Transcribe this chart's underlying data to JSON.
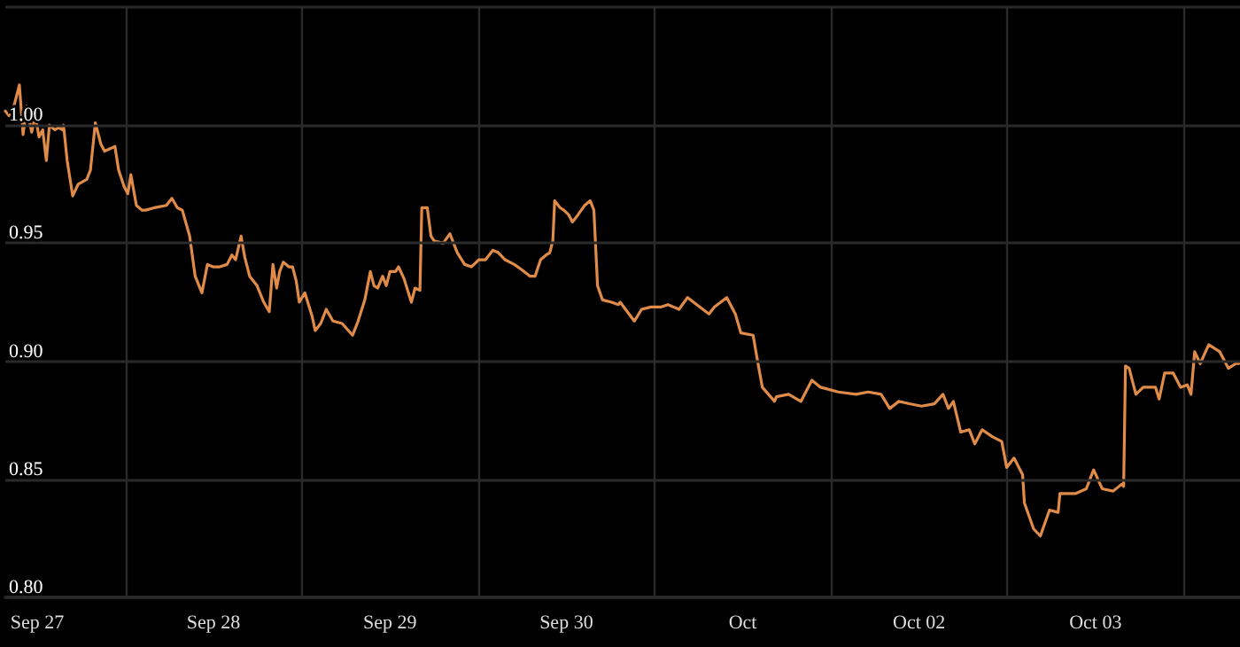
{
  "chart_data": {
    "type": "line",
    "x": [
      "--09-26T19:40",
      "--09-26T20:10",
      "--09-26T20:50",
      "--09-26T21:35",
      "--09-26T22:05",
      "--09-26T22:35",
      "--09-26T23:15",
      "--09-26T23:45",
      "--09-27T00:15",
      "--09-27T00:45",
      "--09-27T01:15",
      "--09-27T01:40",
      "--09-27T02:25",
      "--09-27T02:55",
      "--09-27T03:25",
      "--09-27T03:35",
      "--09-27T04:05",
      "--09-27T04:50",
      "--09-27T05:35",
      "--09-27T06:45",
      "--09-27T07:15",
      "--09-27T07:55",
      "--09-27T08:40",
      "--09-27T09:10",
      "--09-27T09:55",
      "--09-27T10:35",
      "--09-27T11:05",
      "--09-27T11:50",
      "--09-27T12:20",
      "--09-27T12:45",
      "--09-27T13:30",
      "--09-27T14:15",
      "--09-27T14:45",
      "--09-27T15:55",
      "--09-27T17:35",
      "--09-27T18:20",
      "--09-27T19:05",
      "--09-27T19:45",
      "--09-27T20:45",
      "--09-27T21:30",
      "--09-27T22:25",
      "--09-27T23:10",
      "--09-27T23:55",
      "--09-28T00:50",
      "--09-28T01:50",
      "--09-28T02:30",
      "--09-28T03:00",
      "--09-28T03:45",
      "--09-28T04:15",
      "--09-28T04:55",
      "--09-28T05:55",
      "--09-28T06:50",
      "--09-28T07:35",
      "--09-28T08:05",
      "--09-28T08:35",
      "--09-28T09:00",
      "--09-28T09:30",
      "--09-28T10:15",
      "--09-28T10:45",
      "--09-28T11:15",
      "--09-28T11:40",
      "--09-28T12:25",
      "--09-28T13:25",
      "--09-28T13:50",
      "--09-28T14:35",
      "--09-28T15:20",
      "--09-28T16:15",
      "--09-28T17:30",
      "--09-28T18:55",
      "--09-28T19:40",
      "--09-28T20:35",
      "--09-28T21:20",
      "--09-28T21:50",
      "--09-28T22:20",
      "--09-28T23:00",
      "--09-28T23:30",
      "--09-29T00:00",
      "--09-29T00:45",
      "--09-29T01:10",
      "--09-29T01:55",
      "--09-29T02:55",
      "--09-29T03:25",
      "--09-29T04:05",
      "--09-29T04:20",
      "--09-29T05:05",
      "--09-29T05:35",
      "--09-29T06:00",
      "--09-29T07:15",
      "--09-29T08:10",
      "--09-29T09:10",
      "--09-29T10:10",
      "--09-29T11:05",
      "--09-29T12:05",
      "--09-29T13:00",
      "--09-29T14:00",
      "--09-29T14:45",
      "--09-29T15:40",
      "--09-29T16:55",
      "--09-29T17:50",
      "--09-29T19:05",
      "--09-29T19:45",
      "--09-29T20:30",
      "--09-29T21:15",
      "--09-29T21:45",
      "--09-29T22:10",
      "--09-29T22:25",
      "--09-29T23:10",
      "--09-29T23:40",
      "--09-30T00:20",
      "--09-30T00:50",
      "--09-30T01:35",
      "--09-30T02:30",
      "--09-30T03:15",
      "--09-30T03:45",
      "--09-30T04:15",
      "--09-30T04:55",
      "--09-30T06:10",
      "--09-30T07:05",
      "--09-30T07:20",
      "--09-30T09:15",
      "--09-30T10:15",
      "--09-30T11:30",
      "--09-30T12:55",
      "--09-30T13:50",
      "--09-30T15:20",
      "--09-30T16:30",
      "--09-30T17:45",
      "--09-30T19:25",
      "--09-30T20:10",
      "--09-30T21:50",
      "--09-30T23:00",
      "--09-30T23:45",
      "--10-01T01:25",
      "--10-01T01:55",
      "--10-01T02:40",
      "--10-01T04:20",
      "--10-01T04:35",
      "--10-01T06:15",
      "--10-01T07:55",
      "--10-01T09:25",
      "--10-01T10:35",
      "--10-01T13:00",
      "--10-01T15:25",
      "--10-01T17:05",
      "--10-01T18:50",
      "--10-01T20:00",
      "--10-01T21:15",
      "--10-01T22:40",
      "--10-02T00:20",
      "--10-02T02:05",
      "--10-02T03:15",
      "--10-02T04:00",
      "--10-02T04:40",
      "--10-02T05:40",
      "--10-02T06:50",
      "--10-02T07:35",
      "--10-02T08:35",
      "--10-02T10:00",
      "--10-02T11:15",
      "--10-02T11:55",
      "--10-02T12:55",
      "--10-02T14:05",
      "--10-02T14:20",
      "--10-02T15:35",
      "--10-02T16:30",
      "--10-02T17:45",
      "--10-02T18:55",
      "--10-02T19:10",
      "--10-02T21:20",
      "--10-02T22:45",
      "--10-02T23:45",
      "--10-03T00:55",
      "--10-03T02:25",
      "--10-03T03:35",
      "--10-03T03:50",
      "--10-03T04:05",
      "--10-03T04:35",
      "--10-03T05:30",
      "--10-03T06:30",
      "--10-03T08:10",
      "--10-03T08:40",
      "--10-03T09:25",
      "--10-03T10:35",
      "--10-03T11:35",
      "--10-03T12:30",
      "--10-03T13:00",
      "--10-03T13:30",
      "--10-03T14:15",
      "--10-03T15:25",
      "--10-03T16:55",
      "--10-03T18:05",
      "--10-03T19:05",
      "--10-03T19:30"
    ],
    "series": [
      {
        "color": "#e08c48",
        "values": [
          1.006,
          1.004,
          1.008,
          1.017,
          0.996,
          1.008,
          0.997,
          1.004,
          0.995,
          0.998,
          0.985,
          1.0,
          0.998,
          0.999,
          0.998,
          1.0,
          0.985,
          0.97,
          0.975,
          0.977,
          0.981,
          1.001,
          0.992,
          0.989,
          0.99,
          0.991,
          0.981,
          0.974,
          0.971,
          0.979,
          0.966,
          0.964,
          0.964,
          0.965,
          0.966,
          0.969,
          0.965,
          0.964,
          0.953,
          0.936,
          0.929,
          0.941,
          0.94,
          0.94,
          0.941,
          0.945,
          0.943,
          0.953,
          0.944,
          0.936,
          0.932,
          0.925,
          0.921,
          0.941,
          0.931,
          0.938,
          0.942,
          0.94,
          0.94,
          0.934,
          0.925,
          0.929,
          0.919,
          0.913,
          0.916,
          0.922,
          0.917,
          0.916,
          0.911,
          0.917,
          0.926,
          0.938,
          0.932,
          0.931,
          0.936,
          0.932,
          0.938,
          0.938,
          0.94,
          0.935,
          0.925,
          0.931,
          0.93,
          0.965,
          0.965,
          0.953,
          0.951,
          0.95,
          0.954,
          0.946,
          0.941,
          0.94,
          0.943,
          0.943,
          0.947,
          0.946,
          0.943,
          0.941,
          0.939,
          0.936,
          0.936,
          0.943,
          0.945,
          0.946,
          0.951,
          0.968,
          0.965,
          0.964,
          0.962,
          0.959,
          0.962,
          0.966,
          0.968,
          0.964,
          0.932,
          0.926,
          0.925,
          0.924,
          0.925,
          0.917,
          0.922,
          0.923,
          0.923,
          0.924,
          0.922,
          0.927,
          0.924,
          0.92,
          0.923,
          0.927,
          0.92,
          0.912,
          0.911,
          0.902,
          0.889,
          0.883,
          0.885,
          0.886,
          0.883,
          0.892,
          0.889,
          0.887,
          0.886,
          0.887,
          0.886,
          0.88,
          0.883,
          0.882,
          0.881,
          0.882,
          0.886,
          0.88,
          0.883,
          0.87,
          0.871,
          0.865,
          0.871,
          0.868,
          0.866,
          0.855,
          0.859,
          0.852,
          0.84,
          0.829,
          0.826,
          0.837,
          0.836,
          0.844,
          0.844,
          0.846,
          0.854,
          0.846,
          0.845,
          0.848,
          0.847,
          0.898,
          0.897,
          0.886,
          0.889,
          0.889,
          0.884,
          0.895,
          0.895,
          0.889,
          0.89,
          0.886,
          0.904,
          0.899,
          0.907,
          0.904,
          0.897,
          0.899,
          0.899
        ]
      }
    ],
    "xlim": [
      "--09-26T19:40",
      "--10-03T19:40"
    ],
    "xticks": [
      {
        "value": "--09-27",
        "label": "Sep 27"
      },
      {
        "value": "--09-27T12:00",
        "label": null
      },
      {
        "value": "--09-28",
        "label": "Sep 28"
      },
      {
        "value": "--09-28T12:00",
        "label": null
      },
      {
        "value": "--09-29",
        "label": "Sep 29"
      },
      {
        "value": "--09-29T12:00",
        "label": null
      },
      {
        "value": "--09-30",
        "label": "Sep 30"
      },
      {
        "value": "--09-30T12:00",
        "label": null
      },
      {
        "value": "--10-01",
        "label": "Oct"
      },
      {
        "value": "--10-01T12:00",
        "label": null
      },
      {
        "value": "--10-02",
        "label": "Oct 02"
      },
      {
        "value": "--10-02T12:00",
        "label": null
      },
      {
        "value": "--10-03",
        "label": "Oct 03"
      },
      {
        "value": "--10-03T12:00",
        "label": null
      }
    ],
    "ylim": [
      0.8,
      1.05
    ],
    "yticks": [
      {
        "value": 0.8,
        "label": "0.80"
      },
      {
        "value": 0.85,
        "label": "0.85"
      },
      {
        "value": 0.9,
        "label": "0.90"
      },
      {
        "value": 0.95,
        "label": "0.95"
      },
      {
        "value": 1.0,
        "label": "1.00"
      },
      {
        "value": 1.05,
        "label": null
      }
    ],
    "grid": true,
    "marker": "none",
    "line_style": "solid"
  }
}
